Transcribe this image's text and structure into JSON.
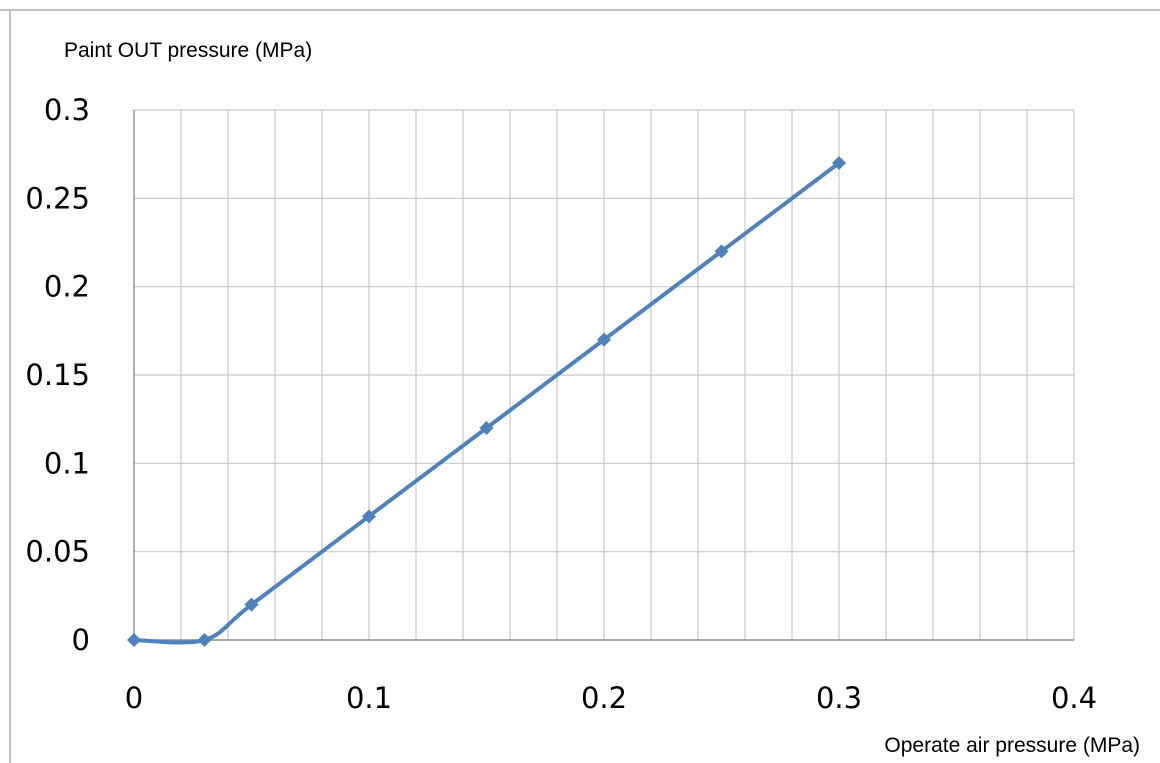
{
  "chart_data": {
    "type": "line",
    "title": "",
    "ylabel": "Paint OUT pressure (MPa)",
    "xlabel": "Operate air pressure (MPa)",
    "xlim": [
      0,
      0.4
    ],
    "ylim": [
      0,
      0.3
    ],
    "x_ticks": [
      "0",
      "0.1",
      "0.2",
      "0.3",
      "0.4"
    ],
    "y_ticks": [
      "0",
      "0.05",
      "0.1",
      "0.15",
      "0.2",
      "0.25",
      "0.3"
    ],
    "grid": true,
    "legend": "none",
    "series": [
      {
        "color": "#4f81bd",
        "marker": "diamond",
        "smooth": true,
        "points": [
          {
            "x": 0,
            "y": 0
          },
          {
            "x": 0.03,
            "y": 0
          },
          {
            "x": 0.05,
            "y": 0.02
          },
          {
            "x": 0.1,
            "y": 0.07
          },
          {
            "x": 0.15,
            "y": 0.12
          },
          {
            "x": 0.2,
            "y": 0.17
          },
          {
            "x": 0.25,
            "y": 0.22
          },
          {
            "x": 0.3,
            "y": 0.27
          }
        ]
      }
    ]
  }
}
